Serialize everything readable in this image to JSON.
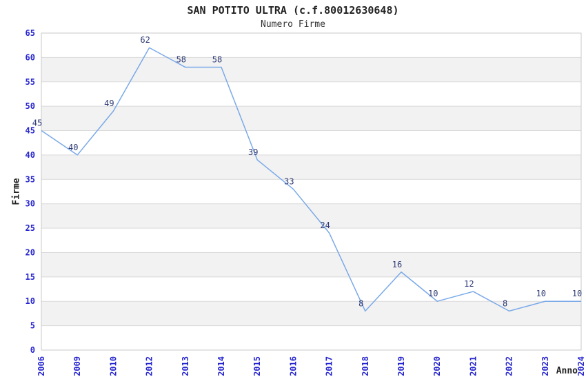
{
  "chart_data": {
    "type": "line",
    "title": "SAN POTITO ULTRA (c.f.80012630648)",
    "subtitle": "Numero Firme",
    "xlabel": "Anno",
    "ylabel": "Firme",
    "categories": [
      "2006",
      "2009",
      "2010",
      "2012",
      "2013",
      "2014",
      "2015",
      "2016",
      "2017",
      "2018",
      "2019",
      "2020",
      "2021",
      "2022",
      "2023",
      "2024"
    ],
    "values": [
      45,
      40,
      49,
      62,
      58,
      58,
      39,
      33,
      24,
      8,
      16,
      10,
      12,
      8,
      10,
      10
    ],
    "ylim": [
      0,
      65
    ],
    "yticks": [
      0,
      5,
      10,
      15,
      20,
      25,
      30,
      35,
      40,
      45,
      50,
      55,
      60,
      65
    ],
    "grid": "horizontal",
    "banded_background": true,
    "legend": "none",
    "data_labels": true,
    "colors": {
      "line": "#7aa9e8",
      "data_label": "#2e3a75",
      "tick_label": "#2626cf",
      "band": "#f2f2f2",
      "grid": "#d9d9d9",
      "border": "#c9c9c9",
      "title": "#222222",
      "axis_label": "#222222",
      "background": "#ffffff"
    }
  }
}
